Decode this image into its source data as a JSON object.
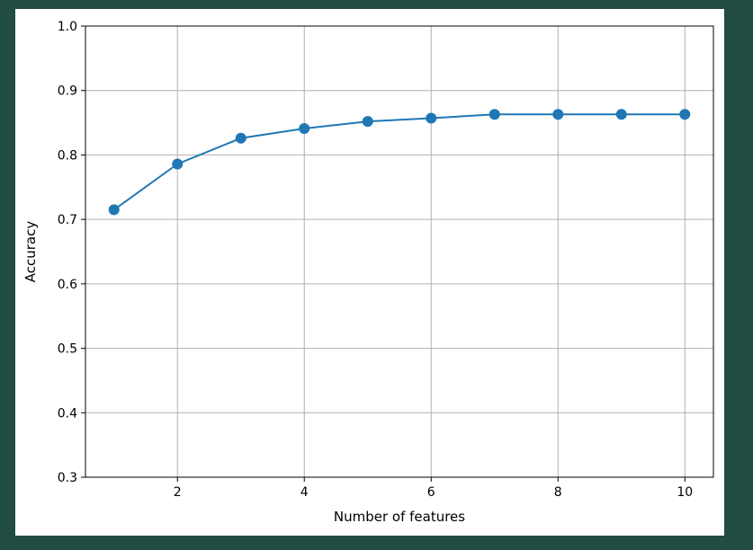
{
  "chart_data": {
    "type": "line",
    "title": "",
    "xlabel": "Number of features",
    "ylabel": "Accuracy",
    "x": [
      1,
      2,
      3,
      4,
      5,
      6,
      7,
      8,
      9,
      10
    ],
    "series": [
      {
        "values": [
          0.715,
          0.786,
          0.826,
          0.841,
          0.852,
          0.857,
          0.863,
          0.863,
          0.863,
          0.863
        ]
      }
    ],
    "xlim": [
      0.55,
      10.45
    ],
    "ylim": [
      0.3,
      1.0
    ],
    "xticks": [
      2,
      4,
      6,
      8,
      10
    ],
    "yticks": [
      0.3,
      0.4,
      0.5,
      0.6,
      0.7,
      0.8,
      0.9,
      1.0
    ],
    "ytick_labels": [
      "0.3",
      "0.4",
      "0.5",
      "0.6",
      "0.7",
      "0.8",
      "0.9",
      "1.0"
    ],
    "grid": true,
    "markers": "circle",
    "colors": {
      "series": "#1f77b4",
      "grid": "#b0b0b0",
      "axes": "#000000"
    }
  }
}
